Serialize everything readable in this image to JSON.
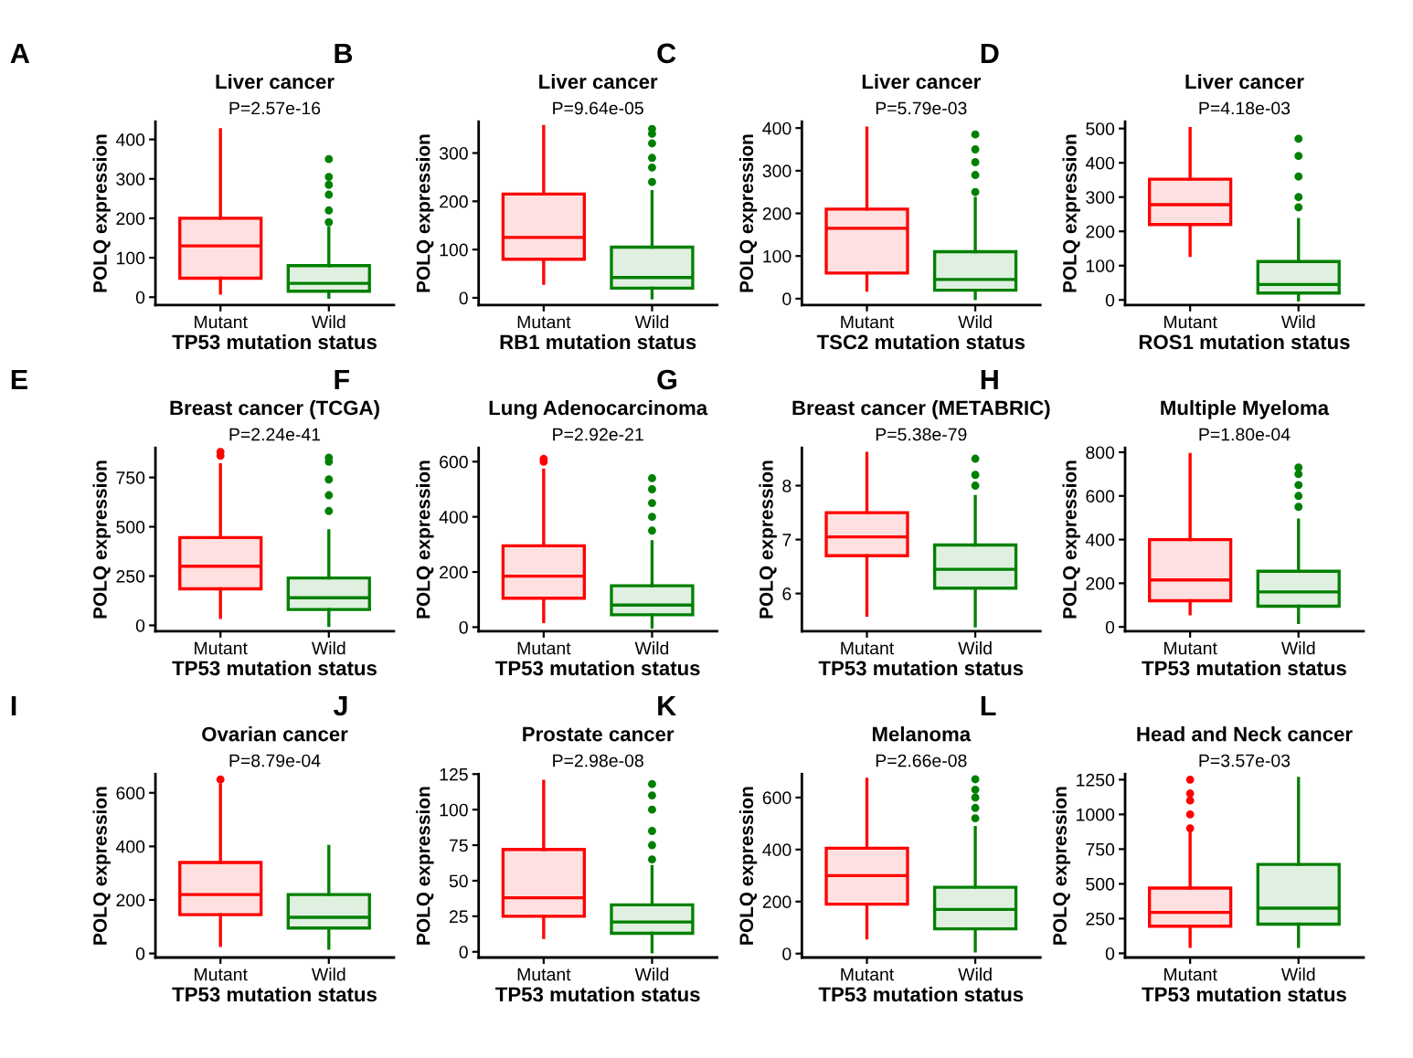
{
  "chart_data": [
    {
      "type": "box",
      "title": "Liver cancer",
      "subtitle": "P=2.57e-16",
      "xlabel": "TP53 mutation status",
      "ylabel": "POLQ expression",
      "annotations": [
        "A"
      ],
      "categories": [
        "Mutant",
        "Wild"
      ],
      "colors": [
        "#ff0000",
        "#008000"
      ],
      "ylim": [
        -20,
        445
      ],
      "yticks": [
        0,
        100,
        200,
        300,
        400
      ],
      "grid": false,
      "legend": false,
      "boxes": [
        {
          "low": 10,
          "q1": 48,
          "median": 130,
          "q3": 200,
          "high": 425
        },
        {
          "low": 0,
          "q1": 15,
          "median": 35,
          "q3": 80,
          "high": 175,
          "outliers": [
            190,
            220,
            260,
            285,
            305,
            350
          ]
        }
      ]
    },
    {
      "type": "box",
      "title": "Liver cancer",
      "subtitle": "P=9.64e-05",
      "xlabel": "RB1 mutation status",
      "ylabel": "POLQ expression",
      "annotations": [
        "B"
      ],
      "categories": [
        "Mutant",
        "Wild"
      ],
      "colors": [
        "#ff0000",
        "#008000"
      ],
      "ylim": [
        -15,
        365
      ],
      "yticks": [
        0,
        100,
        200,
        300
      ],
      "grid": false,
      "legend": false,
      "boxes": [
        {
          "low": 30,
          "q1": 80,
          "median": 125,
          "q3": 215,
          "high": 355
        },
        {
          "low": 0,
          "q1": 20,
          "median": 42,
          "q3": 105,
          "high": 220,
          "outliers": [
            240,
            270,
            290,
            320,
            340,
            350
          ]
        }
      ]
    },
    {
      "type": "box",
      "title": "Liver cancer",
      "subtitle": "P=5.79e-03",
      "xlabel": "TSC2 mutation status",
      "ylabel": "POLQ expression",
      "annotations": [
        "C"
      ],
      "categories": [
        "Mutant",
        "Wild"
      ],
      "colors": [
        "#ff0000",
        "#008000"
      ],
      "ylim": [
        -15,
        415
      ],
      "yticks": [
        0,
        100,
        200,
        300,
        400
      ],
      "grid": false,
      "legend": false,
      "boxes": [
        {
          "low": 20,
          "q1": 60,
          "median": 165,
          "q3": 210,
          "high": 400
        },
        {
          "low": 0,
          "q1": 20,
          "median": 45,
          "q3": 110,
          "high": 235,
          "outliers": [
            250,
            290,
            320,
            350,
            385
          ]
        }
      ]
    },
    {
      "type": "box",
      "title": "Liver cancer",
      "subtitle": "P=4.18e-03",
      "xlabel": "ROS1 mutation status",
      "ylabel": "POLQ expression",
      "annotations": [
        "D"
      ],
      "categories": [
        "Mutant",
        "Wild"
      ],
      "colors": [
        "#ff0000",
        "#008000"
      ],
      "ylim": [
        -15,
        520
      ],
      "yticks": [
        0,
        100,
        200,
        300,
        400,
        500
      ],
      "grid": false,
      "legend": false,
      "boxes": [
        {
          "low": 130,
          "q1": 220,
          "median": 278,
          "q3": 352,
          "high": 500
        },
        {
          "low": 0,
          "q1": 20,
          "median": 45,
          "q3": 112,
          "high": 235,
          "outliers": [
            270,
            300,
            360,
            420,
            470
          ]
        }
      ]
    },
    {
      "type": "box",
      "title": "Breast cancer (TCGA)",
      "subtitle": "P=2.24e-41",
      "xlabel": "TP53 mutation status",
      "ylabel": "POLQ expression",
      "annotations": [
        "E"
      ],
      "categories": [
        "Mutant",
        "Wild"
      ],
      "colors": [
        "#ff0000",
        "#008000"
      ],
      "ylim": [
        -30,
        900
      ],
      "yticks": [
        0,
        250,
        500,
        750
      ],
      "grid": false,
      "legend": false,
      "boxes": [
        {
          "low": 40,
          "q1": 185,
          "median": 300,
          "q3": 445,
          "high": 815,
          "outliers": [
            860,
            880
          ]
        },
        {
          "low": 0,
          "q1": 80,
          "median": 140,
          "q3": 240,
          "high": 480,
          "outliers": [
            580,
            660,
            740,
            830,
            850
          ]
        }
      ]
    },
    {
      "type": "box",
      "title": "Lung Adenocarcinoma",
      "subtitle": "P=2.92e-21",
      "xlabel": "TP53 mutation status",
      "ylabel": "POLQ expression",
      "annotations": [
        "F"
      ],
      "categories": [
        "Mutant",
        "Wild"
      ],
      "colors": [
        "#ff0000",
        "#008000"
      ],
      "ylim": [
        -15,
        650
      ],
      "yticks": [
        0,
        200,
        400,
        600
      ],
      "grid": false,
      "legend": false,
      "boxes": [
        {
          "low": 20,
          "q1": 105,
          "median": 185,
          "q3": 295,
          "high": 570,
          "outliers": [
            600,
            610
          ]
        },
        {
          "low": 0,
          "q1": 45,
          "median": 80,
          "q3": 150,
          "high": 310,
          "outliers": [
            350,
            400,
            450,
            500,
            540
          ]
        }
      ]
    },
    {
      "type": "box",
      "title": "Breast cancer (METABRIC)",
      "subtitle": "P=5.38e-79",
      "xlabel": "TP53 mutation status",
      "ylabel": "POLQ expression",
      "annotations": [
        "G"
      ],
      "categories": [
        "Mutant",
        "Wild"
      ],
      "colors": [
        "#ff0000",
        "#008000"
      ],
      "ylim": [
        5.3,
        8.7
      ],
      "yticks": [
        6,
        7,
        8
      ],
      "grid": false,
      "legend": false,
      "boxes": [
        {
          "low": 5.6,
          "q1": 6.7,
          "median": 7.05,
          "q3": 7.5,
          "high": 8.6
        },
        {
          "low": 5.4,
          "q1": 6.1,
          "median": 6.45,
          "q3": 6.9,
          "high": 7.8,
          "outliers": [
            8.0,
            8.2,
            8.5
          ]
        }
      ]
    },
    {
      "type": "box",
      "title": "Multiple Myeloma",
      "subtitle": "P=1.80e-04",
      "xlabel": "TP53 mutation status",
      "ylabel": "POLQ expression",
      "annotations": [
        "H"
      ],
      "categories": [
        "Mutant",
        "Wild"
      ],
      "colors": [
        "#ff0000",
        "#008000"
      ],
      "ylim": [
        -20,
        820
      ],
      "yticks": [
        0,
        200,
        400,
        600,
        800
      ],
      "grid": false,
      "legend": false,
      "boxes": [
        {
          "low": 60,
          "q1": 120,
          "median": 215,
          "q3": 400,
          "high": 790
        },
        {
          "low": 20,
          "q1": 95,
          "median": 160,
          "q3": 255,
          "high": 490,
          "outliers": [
            550,
            600,
            650,
            700,
            730
          ]
        }
      ]
    },
    {
      "type": "box",
      "title": "Ovarian cancer",
      "subtitle": "P=8.79e-04",
      "xlabel": "TP53 mutation status",
      "ylabel": "POLQ expression",
      "annotations": [
        "I"
      ],
      "categories": [
        "Mutant",
        "Wild"
      ],
      "colors": [
        "#ff0000",
        "#008000"
      ],
      "ylim": [
        -15,
        670
      ],
      "yticks": [
        0,
        200,
        400,
        600
      ],
      "grid": false,
      "legend": false,
      "boxes": [
        {
          "low": 30,
          "q1": 145,
          "median": 220,
          "q3": 340,
          "high": 630,
          "outliers": [
            650
          ]
        },
        {
          "low": 20,
          "q1": 95,
          "median": 135,
          "q3": 220,
          "high": 400
        }
      ]
    },
    {
      "type": "box",
      "title": "Prostate cancer",
      "subtitle": "P=2.98e-08",
      "xlabel": "TP53 mutation status",
      "ylabel": "POLQ expression",
      "annotations": [
        "J"
      ],
      "categories": [
        "Mutant",
        "Wild"
      ],
      "colors": [
        "#ff0000",
        "#008000"
      ],
      "ylim": [
        -4,
        125
      ],
      "yticks": [
        0,
        25,
        50,
        75,
        100,
        125
      ],
      "grid": false,
      "legend": false,
      "boxes": [
        {
          "low": 10,
          "q1": 25,
          "median": 38,
          "q3": 72,
          "high": 120
        },
        {
          "low": 0,
          "q1": 13,
          "median": 21,
          "q3": 33,
          "high": 60,
          "outliers": [
            65,
            75,
            85,
            100,
            110,
            118
          ]
        }
      ]
    },
    {
      "type": "box",
      "title": "Melanoma",
      "subtitle": "P=2.66e-08",
      "xlabel": "TP53 mutation status",
      "ylabel": "POLQ expression",
      "annotations": [
        "K"
      ],
      "categories": [
        "Mutant",
        "Wild"
      ],
      "colors": [
        "#ff0000",
        "#008000"
      ],
      "ylim": [
        -15,
        690
      ],
      "yticks": [
        0,
        200,
        400,
        600
      ],
      "grid": false,
      "legend": false,
      "boxes": [
        {
          "low": 60,
          "q1": 190,
          "median": 300,
          "q3": 405,
          "high": 670
        },
        {
          "low": 10,
          "q1": 95,
          "median": 170,
          "q3": 255,
          "high": 485,
          "outliers": [
            520,
            560,
            600,
            630,
            670
          ]
        }
      ]
    },
    {
      "type": "box",
      "title": "Head and Neck cancer",
      "subtitle": "P=3.57e-03",
      "xlabel": "TP53 mutation status",
      "ylabel": "POLQ expression",
      "annotations": [
        "L"
      ],
      "categories": [
        "Mutant",
        "Wild"
      ],
      "colors": [
        "#ff0000",
        "#008000"
      ],
      "ylim": [
        -30,
        1290
      ],
      "yticks": [
        0,
        250,
        500,
        750,
        1000,
        1250
      ],
      "grid": false,
      "legend": false,
      "boxes": [
        {
          "low": 50,
          "q1": 195,
          "median": 295,
          "q3": 470,
          "high": 870,
          "outliers": [
            900,
            1000,
            1100,
            1150,
            1250
          ]
        },
        {
          "low": 50,
          "q1": 210,
          "median": 325,
          "q3": 640,
          "high": 1260
        }
      ]
    }
  ]
}
